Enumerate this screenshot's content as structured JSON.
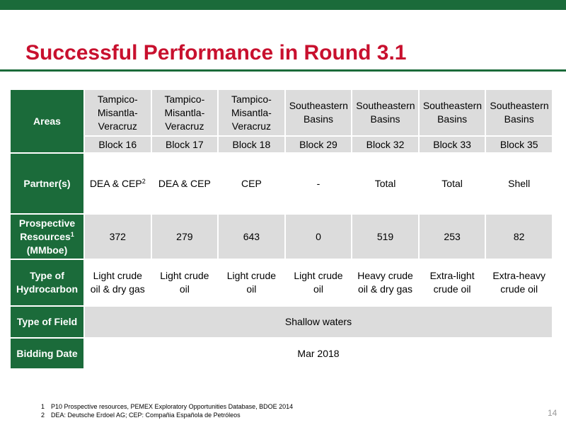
{
  "header": {
    "title": "Successful Performance in Round 3.1"
  },
  "table": {
    "labels": {
      "areas": "Areas",
      "partner": "Partner(s)",
      "resources": "Prospective Resources",
      "resources_note": "1",
      "resources_unit": "(MMboe)",
      "hydrocarbon": "Type of Hydrocarbon",
      "field": "Type of Field",
      "bidding": "Bidding Date"
    },
    "columns": [
      {
        "area": "Tampico-Misantla-Veracruz",
        "block": "Block 16",
        "partner": "DEA & CEP",
        "partner_note": "2",
        "resources": 372,
        "hydrocarbon": "Light crude oil & dry gas"
      },
      {
        "area": "Tampico-Misantla-Veracruz",
        "block": "Block 17",
        "partner": "DEA & CEP",
        "resources": 279,
        "hydrocarbon": "Light crude oil"
      },
      {
        "area": "Tampico-Misantla-Veracruz",
        "block": "Block 18",
        "partner": "CEP",
        "resources": 643,
        "hydrocarbon": "Light crude oil"
      },
      {
        "area": "Southeastern Basins",
        "block": "Block 29",
        "partner": "-",
        "resources": 0,
        "hydrocarbon": "Light crude oil"
      },
      {
        "area": "Southeastern Basins",
        "block": "Block 32",
        "partner": "Total",
        "resources": 519,
        "hydrocarbon": "Heavy crude oil & dry gas"
      },
      {
        "area": "Southeastern Basins",
        "block": "Block 33",
        "partner": "Total",
        "resources": 253,
        "hydrocarbon": "Extra-light crude oil"
      },
      {
        "area": "Southeastern Basins",
        "block": "Block 35",
        "partner": "Shell",
        "resources": 82,
        "hydrocarbon": "Extra-heavy crude oil"
      }
    ],
    "field": "Shallow waters",
    "bidding": "Mar 2018"
  },
  "footnotes": [
    {
      "number": "1",
      "text": "P10 Prospective resources, PEMEX Exploratory Opportunities Database, BDOE 2014"
    },
    {
      "number": "2",
      "text": "DEA: Deutsche Erdoel AG; CEP: Compañia Española de Petróleos"
    }
  ],
  "page_number": "14"
}
